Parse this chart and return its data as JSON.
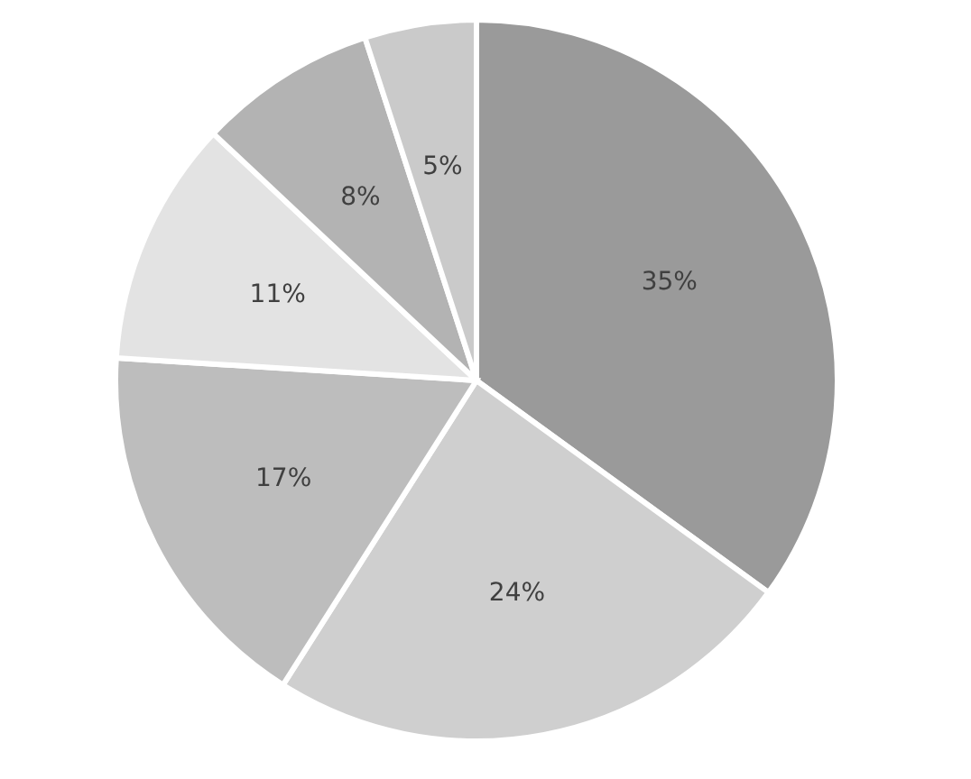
{
  "chart_data": {
    "type": "pie",
    "categories": [
      null,
      null,
      null,
      null,
      null,
      null
    ],
    "values": [
      35,
      24,
      17,
      11,
      8,
      5
    ],
    "colors": [
      "#9a9a9a",
      "#cfcfcf",
      "#bdbdbd",
      "#e3e3e3",
      "#b3b3b3",
      "#cacaca"
    ],
    "value_labels": [
      "35%",
      "24%",
      "17%",
      "11%",
      "8%",
      "5%"
    ],
    "legend": false
  }
}
